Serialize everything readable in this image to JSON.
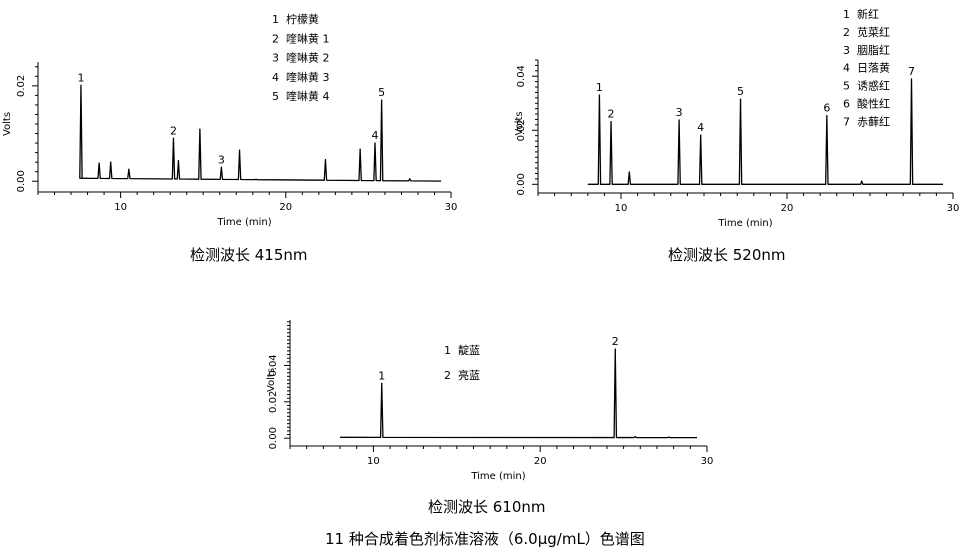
{
  "figure_caption": "11 种合成着色剂标准溶液（6.0μg/mL）色谱图",
  "chart_data": [
    {
      "type": "line",
      "title": "检测波长 415nm",
      "xlabel": "Time (min)",
      "ylabel": "Volts",
      "xlim": [
        5,
        30
      ],
      "ylim": [
        -0.001,
        0.025
      ],
      "xticks": [
        10,
        20,
        30
      ],
      "yticks": [
        0.0,
        0.02
      ],
      "ytick_labels": [
        "0.00",
        "0.02"
      ],
      "baseline_start": 0.0007,
      "baseline_end": 0.0,
      "legend_position": "top-center",
      "legend": [
        {
          "num": "1",
          "name": "柠檬黄"
        },
        {
          "num": "2",
          "name": "喹啉黄 1"
        },
        {
          "num": "3",
          "name": "喹啉黄 2"
        },
        {
          "num": "4",
          "name": "喹啉黄 3"
        },
        {
          "num": "5",
          "name": "喹啉黄 4"
        }
      ],
      "peaks": [
        {
          "x": 7.6,
          "y": 0.0201,
          "label": "1"
        },
        {
          "x": 8.7,
          "y": 0.0038,
          "label": ""
        },
        {
          "x": 9.4,
          "y": 0.004,
          "label": ""
        },
        {
          "x": 10.5,
          "y": 0.0025,
          "label": ""
        },
        {
          "x": 13.2,
          "y": 0.009,
          "label": "2"
        },
        {
          "x": 13.5,
          "y": 0.0043,
          "label": ""
        },
        {
          "x": 14.8,
          "y": 0.0109,
          "label": ""
        },
        {
          "x": 16.1,
          "y": 0.0029,
          "label": "3"
        },
        {
          "x": 17.2,
          "y": 0.0065,
          "label": ""
        },
        {
          "x": 18.2,
          "y": 0.0004,
          "label": ""
        },
        {
          "x": 22.4,
          "y": 0.0045,
          "label": ""
        },
        {
          "x": 24.5,
          "y": 0.0067,
          "label": ""
        },
        {
          "x": 25.4,
          "y": 0.008,
          "label": "4"
        },
        {
          "x": 25.8,
          "y": 0.017,
          "label": "5"
        },
        {
          "x": 27.5,
          "y": 0.0005,
          "label": ""
        }
      ]
    },
    {
      "type": "line",
      "title": "检测波长 520nm",
      "xlabel": "Time (min)",
      "ylabel": "Volts",
      "xlim": [
        5,
        30
      ],
      "ylim": [
        -0.001,
        0.046
      ],
      "xticks": [
        10,
        20,
        30
      ],
      "yticks": [
        0.0,
        0.02,
        0.04
      ],
      "ytick_labels": [
        "0.00",
        "0.02",
        "0.04"
      ],
      "baseline_start": 0.0,
      "baseline_end": 0.0,
      "legend_position": "top-right",
      "legend": [
        {
          "num": "1",
          "name": "新红"
        },
        {
          "num": "2",
          "name": "苋菜红"
        },
        {
          "num": "3",
          "name": "胭脂红"
        },
        {
          "num": "4",
          "name": "日落黄"
        },
        {
          "num": "5",
          "name": "诱惑红"
        },
        {
          "num": "6",
          "name": "酸性红"
        },
        {
          "num": "7",
          "name": "赤藓红"
        }
      ],
      "peaks": [
        {
          "x": 8.7,
          "y": 0.033,
          "label": "1"
        },
        {
          "x": 9.4,
          "y": 0.0232,
          "label": "2"
        },
        {
          "x": 10.5,
          "y": 0.0045,
          "label": ""
        },
        {
          "x": 13.5,
          "y": 0.0238,
          "label": "3"
        },
        {
          "x": 14.8,
          "y": 0.0182,
          "label": "4"
        },
        {
          "x": 17.2,
          "y": 0.0315,
          "label": "5"
        },
        {
          "x": 22.4,
          "y": 0.0254,
          "label": "6"
        },
        {
          "x": 24.5,
          "y": 0.0012,
          "label": ""
        },
        {
          "x": 27.5,
          "y": 0.039,
          "label": "7"
        }
      ]
    },
    {
      "type": "line",
      "title": "检测波长 610nm",
      "xlabel": "Time (min)",
      "ylabel": "Volts",
      "xlim": [
        5,
        30
      ],
      "ylim": [
        -0.001,
        0.065
      ],
      "xticks": [
        10,
        20,
        30
      ],
      "yticks": [
        0.0,
        0.02,
        0.04
      ],
      "ytick_labels": [
        "0.00",
        "0.02",
        "0.04"
      ],
      "baseline_start": 0.0005,
      "baseline_end": 0.0003,
      "legend_position": "top-center",
      "legend": [
        {
          "num": "1",
          "name": "靛蓝"
        },
        {
          "num": "2",
          "name": "亮蓝"
        }
      ],
      "peaks": [
        {
          "x": 10.5,
          "y": 0.0301,
          "label": "1"
        },
        {
          "x": 24.5,
          "y": 0.049,
          "label": "2"
        },
        {
          "x": 25.7,
          "y": 0.0009,
          "label": ""
        },
        {
          "x": 27.7,
          "y": 0.0006,
          "label": ""
        }
      ]
    }
  ]
}
